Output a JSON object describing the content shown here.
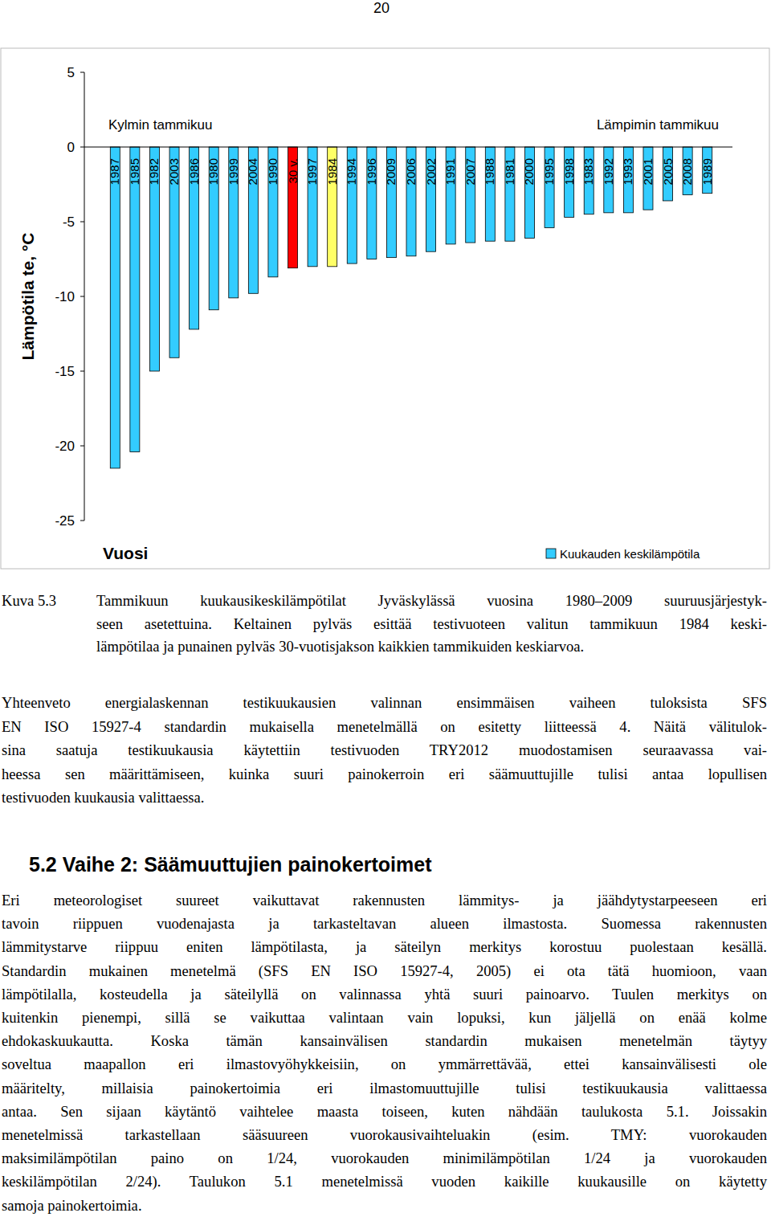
{
  "page_number": "20",
  "chart_data": {
    "type": "bar",
    "ylabel": "Lämpötila te, °C",
    "xlabel": "Vuosi",
    "annotations": [
      "Kylmin tammikuu",
      "Lämpimin tammikuu"
    ],
    "categories": [
      "1987",
      "1985",
      "1982",
      "2003",
      "1986",
      "1980",
      "1999",
      "2004",
      "1990",
      "30 v.",
      "1997",
      "1984",
      "1994",
      "1996",
      "2009",
      "2006",
      "2002",
      "1991",
      "2007",
      "1988",
      "1981",
      "2000",
      "1995",
      "1998",
      "1983",
      "1992",
      "1993",
      "2001",
      "2005",
      "2008",
      "1989"
    ],
    "series": [
      {
        "name": "Kuukauden keskilämpötila",
        "color": "#33ccff",
        "values": [
          -21.5,
          -20.4,
          -15.0,
          -14.1,
          -12.2,
          -10.9,
          -10.1,
          -9.8,
          -8.7,
          -8.1,
          -8.0,
          -8.0,
          -7.8,
          -7.5,
          -7.4,
          -7.3,
          -7.0,
          -6.5,
          -6.4,
          -6.3,
          -6.3,
          -6.1,
          -5.4,
          -4.7,
          -4.5,
          -4.4,
          -4.4,
          -4.2,
          -3.6,
          -3.2,
          -3.1
        ],
        "colors": [
          "#33ccff",
          "#33ccff",
          "#33ccff",
          "#33ccff",
          "#33ccff",
          "#33ccff",
          "#33ccff",
          "#33ccff",
          "#33ccff",
          "#ff0000",
          "#33ccff",
          "#ffff66",
          "#33ccff",
          "#33ccff",
          "#33ccff",
          "#33ccff",
          "#33ccff",
          "#33ccff",
          "#33ccff",
          "#33ccff",
          "#33ccff",
          "#33ccff",
          "#33ccff",
          "#33ccff",
          "#33ccff",
          "#33ccff",
          "#33ccff",
          "#33ccff",
          "#33ccff",
          "#33ccff",
          "#33ccff"
        ]
      }
    ],
    "ylim": [
      -25,
      5
    ],
    "yticks": [
      -25,
      -20,
      -15,
      -10,
      -5,
      0,
      5
    ],
    "grid": false,
    "legend": "bottom right"
  },
  "caption": {
    "label": "Kuva 5.3",
    "lines": [
      "Tammikuun kuukausikeskilämpötilat Jyväskylässä vuosina 1980–2009 suuruusjärjestyk-",
      "seen asetettuina. Keltainen pylväs esittää testivuoteen valitun tammikuun 1984 keski-",
      "lämpötilaa ja punainen pylväs 30-vuotisjakson kaikkien tammikuiden keskiarvoa."
    ]
  },
  "paragraph": [
    "Yhteenveto energialaskennan testikuukausien valinnan ensimmäisen vaiheen tuloksista SFS",
    "EN ISO 15927-4 standardin mukaisella menetelmällä on esitetty liitteessä 4. Näitä välitulok-",
    "sina saatuja testikuukausia käytettiin testivuoden TRY2012 muodostamisen seuraavassa vai-",
    "heessa sen määrittämiseen, kuinka suuri painokerroin eri säämuuttujille tulisi antaa lopullisen",
    "testivuoden kuukausia valittaessa."
  ],
  "section": {
    "heading": "5.2 Vaihe 2: Säämuuttujien painokertoimet",
    "paragraph": [
      "Eri meteorologiset suureet vaikuttavat rakennusten lämmitys- ja jäähdytystarpeeseen eri",
      "tavoin riippuen vuodenajasta ja tarkasteltavan alueen ilmastosta. Suomessa rakennusten",
      "lämmitystarve riippuu eniten lämpötilasta, ja säteilyn merkitys korostuu puolestaan kesällä.",
      "Standardin mukainen menetelmä (SFS EN ISO 15927-4, 2005) ei ota tätä huomioon, vaan",
      "lämpötilalla, kosteudella ja säteilyllä on valinnassa yhtä suuri painoarvo. Tuulen merkitys on",
      "kuitenkin pienempi, sillä se vaikuttaa valintaan vain lopuksi, kun jäljellä on enää kolme",
      "ehdokaskuukautta. Koska tämän kansainvälisen standardin mukaisen menetelmän täytyy",
      "soveltua maapallon eri ilmastovyöhykkeisiin, on ymmärrettävää, ettei kansainvälisesti ole",
      "määritelty, millaisia painokertoimia eri ilmastomuuttujille tulisi testikuukausia valittaessa",
      "antaa. Sen sijaan käytäntö vaihtelee maasta toiseen, kuten nähdään taulukosta 5.1. Joissakin",
      "menetelmissä tarkastellaan sääsuureen vuorokausivaihteluakin (esim. TMY: vuorokauden",
      "maksimilämpötilan paino on 1/24, vuorokauden minimilämpötilan 1/24 ja vuorokauden",
      "keskilämpötilan 2/24). Taulukon 5.1 menetelmissä vuoden kaikille kuukausille on käytetty",
      "samoja painokertoimia."
    ]
  }
}
